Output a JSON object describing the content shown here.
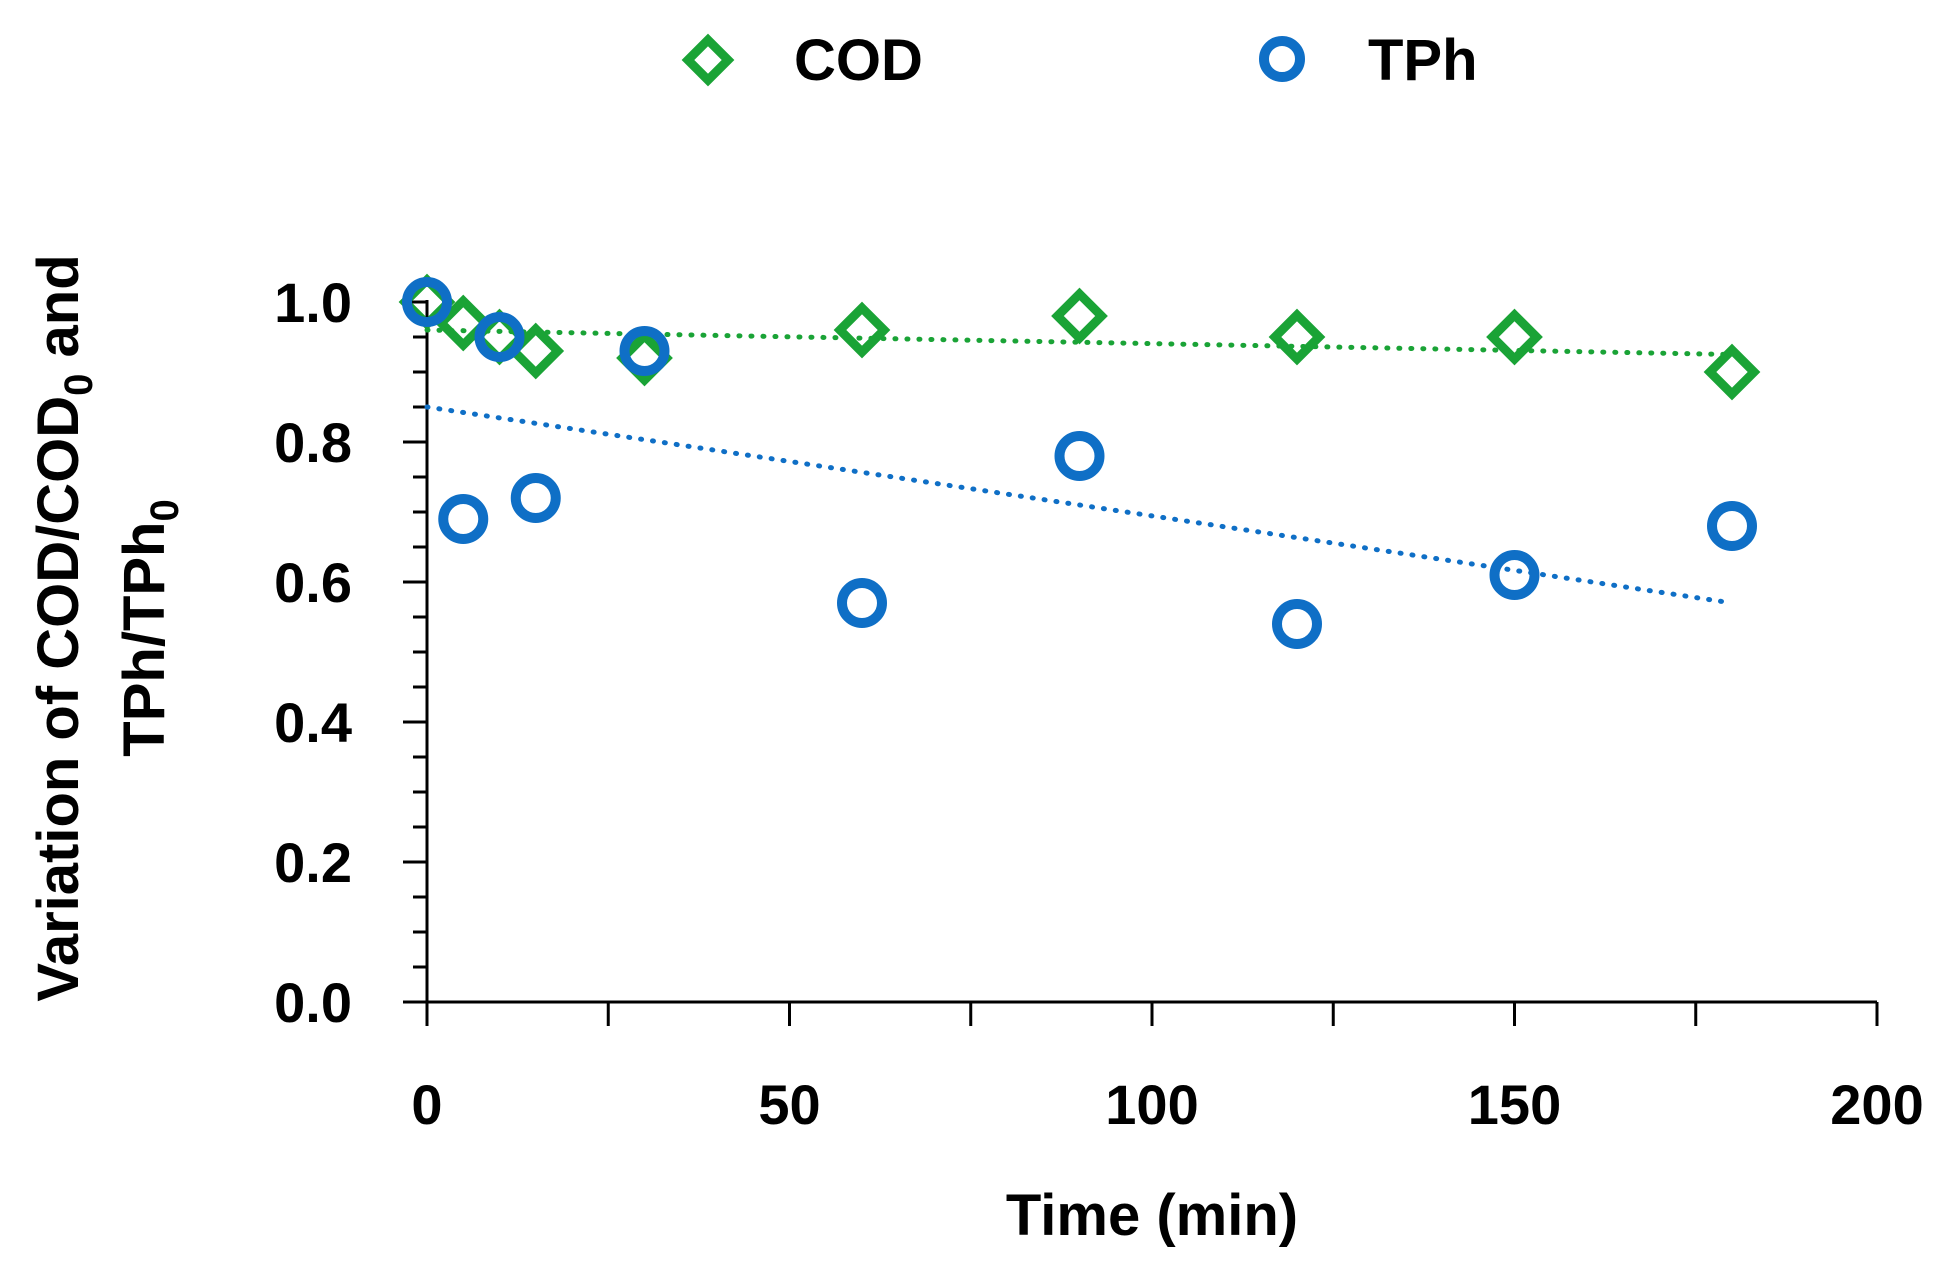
{
  "chart_data": {
    "type": "scatter",
    "xlabel": "Time (min)",
    "ylabel_line1_pre": "Variation of COD/COD",
    "ylabel_line1_sub": "0",
    "ylabel_line1_post": " and",
    "ylabel_line2_pre": "TPh/TPh",
    "ylabel_line2_sub": "0",
    "xlim": [
      0,
      200
    ],
    "ylim": [
      0,
      1.0
    ],
    "x_ticks": [
      "0",
      "50",
      "100",
      "150",
      "200"
    ],
    "x_tick_values": [
      0,
      50,
      100,
      150,
      200
    ],
    "y_ticks": [
      "0.0",
      "0.2",
      "0.4",
      "0.6",
      "0.8",
      "1.0"
    ],
    "y_tick_values": [
      0,
      0.2,
      0.4,
      0.6,
      0.8,
      1.0
    ],
    "legend_position": "top",
    "grid": false,
    "series": [
      {
        "name": "COD",
        "marker": "diamond",
        "color": "#1aa336",
        "x": [
          0,
          5,
          10,
          15,
          30,
          60,
          90,
          120,
          150,
          180
        ],
        "y": [
          1.0,
          0.97,
          0.95,
          0.93,
          0.92,
          0.96,
          0.98,
          0.95,
          0.95,
          0.9
        ],
        "trendline": {
          "style": "dotted",
          "x": [
            0,
            180
          ],
          "y": [
            0.96,
            0.925
          ]
        }
      },
      {
        "name": "TPh",
        "marker": "circle",
        "color": "#0f6fc6",
        "x": [
          0,
          5,
          10,
          15,
          30,
          60,
          90,
          120,
          150,
          180
        ],
        "y": [
          1.0,
          0.69,
          0.95,
          0.72,
          0.93,
          0.57,
          0.78,
          0.54,
          0.61,
          0.68
        ],
        "trendline": {
          "style": "dotted",
          "x": [
            0,
            180
          ],
          "y": [
            0.85,
            0.57
          ]
        }
      }
    ]
  }
}
